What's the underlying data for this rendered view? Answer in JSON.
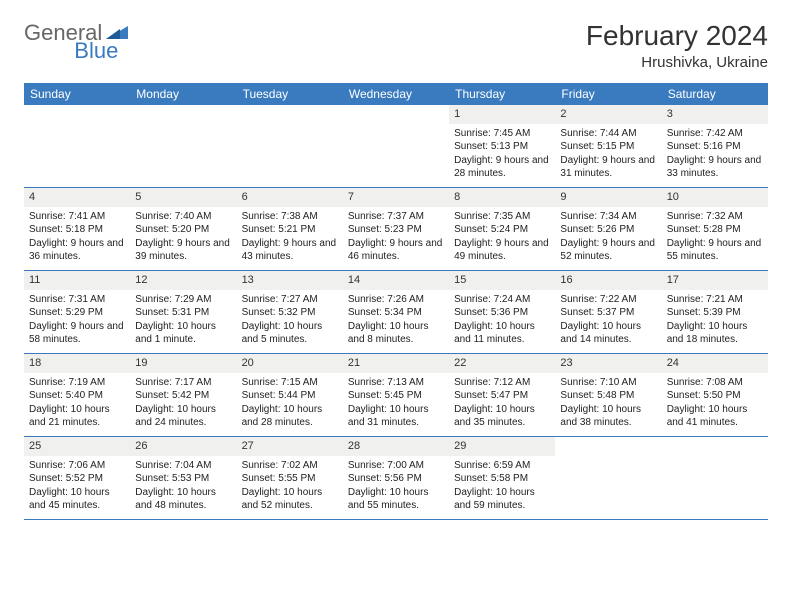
{
  "logo": {
    "text1": "General",
    "text2": "Blue"
  },
  "title": "February 2024",
  "location": "Hrushivka, Ukraine",
  "colors": {
    "header_bg": "#3a7bbf",
    "header_text": "#ffffff",
    "daynum_bg": "#f0f0ee",
    "text": "#222222",
    "border": "#3a7bbf"
  },
  "fonts": {
    "title_size": 28,
    "location_size": 15,
    "header_size": 12,
    "cell_size": 10
  },
  "day_labels": [
    "Sunday",
    "Monday",
    "Tuesday",
    "Wednesday",
    "Thursday",
    "Friday",
    "Saturday"
  ],
  "weeks": [
    [
      null,
      null,
      null,
      null,
      {
        "n": "1",
        "sr": "7:45 AM",
        "ss": "5:13 PM",
        "dl": "9 hours and 28 minutes."
      },
      {
        "n": "2",
        "sr": "7:44 AM",
        "ss": "5:15 PM",
        "dl": "9 hours and 31 minutes."
      },
      {
        "n": "3",
        "sr": "7:42 AM",
        "ss": "5:16 PM",
        "dl": "9 hours and 33 minutes."
      }
    ],
    [
      {
        "n": "4",
        "sr": "7:41 AM",
        "ss": "5:18 PM",
        "dl": "9 hours and 36 minutes."
      },
      {
        "n": "5",
        "sr": "7:40 AM",
        "ss": "5:20 PM",
        "dl": "9 hours and 39 minutes."
      },
      {
        "n": "6",
        "sr": "7:38 AM",
        "ss": "5:21 PM",
        "dl": "9 hours and 43 minutes."
      },
      {
        "n": "7",
        "sr": "7:37 AM",
        "ss": "5:23 PM",
        "dl": "9 hours and 46 minutes."
      },
      {
        "n": "8",
        "sr": "7:35 AM",
        "ss": "5:24 PM",
        "dl": "9 hours and 49 minutes."
      },
      {
        "n": "9",
        "sr": "7:34 AM",
        "ss": "5:26 PM",
        "dl": "9 hours and 52 minutes."
      },
      {
        "n": "10",
        "sr": "7:32 AM",
        "ss": "5:28 PM",
        "dl": "9 hours and 55 minutes."
      }
    ],
    [
      {
        "n": "11",
        "sr": "7:31 AM",
        "ss": "5:29 PM",
        "dl": "9 hours and 58 minutes."
      },
      {
        "n": "12",
        "sr": "7:29 AM",
        "ss": "5:31 PM",
        "dl": "10 hours and 1 minute."
      },
      {
        "n": "13",
        "sr": "7:27 AM",
        "ss": "5:32 PM",
        "dl": "10 hours and 5 minutes."
      },
      {
        "n": "14",
        "sr": "7:26 AM",
        "ss": "5:34 PM",
        "dl": "10 hours and 8 minutes."
      },
      {
        "n": "15",
        "sr": "7:24 AM",
        "ss": "5:36 PM",
        "dl": "10 hours and 11 minutes."
      },
      {
        "n": "16",
        "sr": "7:22 AM",
        "ss": "5:37 PM",
        "dl": "10 hours and 14 minutes."
      },
      {
        "n": "17",
        "sr": "7:21 AM",
        "ss": "5:39 PM",
        "dl": "10 hours and 18 minutes."
      }
    ],
    [
      {
        "n": "18",
        "sr": "7:19 AM",
        "ss": "5:40 PM",
        "dl": "10 hours and 21 minutes."
      },
      {
        "n": "19",
        "sr": "7:17 AM",
        "ss": "5:42 PM",
        "dl": "10 hours and 24 minutes."
      },
      {
        "n": "20",
        "sr": "7:15 AM",
        "ss": "5:44 PM",
        "dl": "10 hours and 28 minutes."
      },
      {
        "n": "21",
        "sr": "7:13 AM",
        "ss": "5:45 PM",
        "dl": "10 hours and 31 minutes."
      },
      {
        "n": "22",
        "sr": "7:12 AM",
        "ss": "5:47 PM",
        "dl": "10 hours and 35 minutes."
      },
      {
        "n": "23",
        "sr": "7:10 AM",
        "ss": "5:48 PM",
        "dl": "10 hours and 38 minutes."
      },
      {
        "n": "24",
        "sr": "7:08 AM",
        "ss": "5:50 PM",
        "dl": "10 hours and 41 minutes."
      }
    ],
    [
      {
        "n": "25",
        "sr": "7:06 AM",
        "ss": "5:52 PM",
        "dl": "10 hours and 45 minutes."
      },
      {
        "n": "26",
        "sr": "7:04 AM",
        "ss": "5:53 PM",
        "dl": "10 hours and 48 minutes."
      },
      {
        "n": "27",
        "sr": "7:02 AM",
        "ss": "5:55 PM",
        "dl": "10 hours and 52 minutes."
      },
      {
        "n": "28",
        "sr": "7:00 AM",
        "ss": "5:56 PM",
        "dl": "10 hours and 55 minutes."
      },
      {
        "n": "29",
        "sr": "6:59 AM",
        "ss": "5:58 PM",
        "dl": "10 hours and 59 minutes."
      },
      null,
      null
    ]
  ],
  "labels": {
    "sunrise": "Sunrise:",
    "sunset": "Sunset:",
    "daylight": "Daylight:"
  }
}
